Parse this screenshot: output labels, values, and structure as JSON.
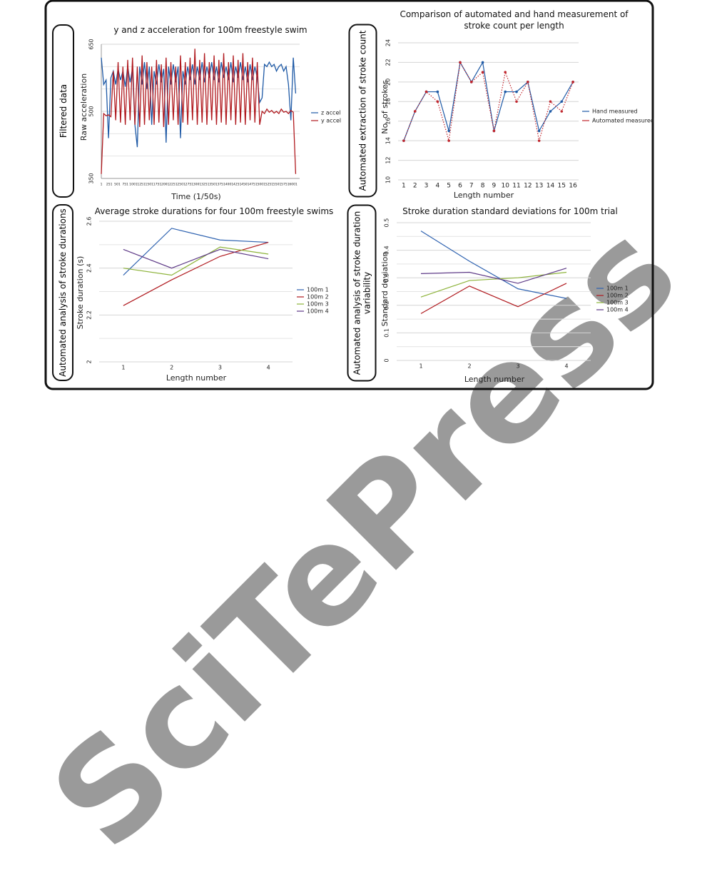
{
  "side_labels": [
    "Filtered data",
    "Automated extraction of stroke count",
    "Automated analysis of stroke durations",
    "Automated analysis of stroke duration variability"
  ],
  "watermark": "SciTePress",
  "chart_data": [
    {
      "type": "line",
      "title": "y and z acceleration for 100m freestyle swim",
      "x_label": "Time (1/50s)",
      "y_label": "Raw acceleration",
      "x": [
        1,
        76,
        151,
        226,
        301,
        376,
        451,
        526,
        601,
        676,
        751,
        826,
        901,
        976,
        1051,
        1126,
        1201,
        1276,
        1351,
        1426,
        1501,
        1576,
        1651,
        1726,
        1801,
        1876,
        1951,
        2026,
        2101,
        2176,
        2251,
        2326,
        2401,
        2476,
        2551,
        2626,
        2701,
        2776,
        2851,
        2926,
        3001,
        3076,
        3151,
        3226,
        3301,
        3376,
        3451,
        3526,
        3601,
        3676,
        3751,
        3826,
        3901,
        3976,
        4051,
        4126,
        4201,
        4276,
        4351,
        4426,
        4501,
        4576,
        4651,
        4726,
        4801,
        4876,
        4951,
        5026,
        5101,
        5176,
        5251,
        5326,
        5401,
        5476,
        5551,
        5626,
        5701,
        5776,
        5851,
        5926,
        6001,
        6076
      ],
      "series": [
        {
          "name": "z accel",
          "color": "#1f5aa6",
          "values": [
            620,
            560,
            570,
            440,
            575,
            590,
            560,
            595,
            570,
            590,
            555,
            600,
            565,
            595,
            470,
            420,
            600,
            560,
            610,
            550,
            600,
            470,
            590,
            560,
            605,
            565,
            595,
            430,
            600,
            560,
            605,
            565,
            600,
            440,
            590,
            560,
            600,
            570,
            605,
            560,
            600,
            570,
            610,
            565,
            600,
            575,
            610,
            570,
            600,
            565,
            610,
            575,
            600,
            570,
            610,
            565,
            600,
            575,
            610,
            570,
            600,
            565,
            605,
            570,
            600,
            575,
            520,
            530,
            605,
            600,
            610,
            600,
            605,
            590,
            600,
            605,
            590,
            600,
            560,
            480,
            620,
            540
          ]
        },
        {
          "name": "y accel",
          "color": "#b0191e",
          "values": [
            360,
            495,
            490,
            492,
            488,
            590,
            480,
            610,
            475,
            600,
            470,
            615,
            480,
            620,
            470,
            600,
            465,
            625,
            470,
            610,
            480,
            600,
            470,
            615,
            475,
            605,
            465,
            620,
            470,
            610,
            480,
            600,
            470,
            625,
            475,
            610,
            470,
            620,
            480,
            640,
            470,
            615,
            475,
            630,
            470,
            610,
            480,
            625,
            470,
            615,
            475,
            630,
            470,
            610,
            480,
            625,
            470,
            615,
            475,
            630,
            470,
            610,
            480,
            620,
            475,
            610,
            470,
            500,
            495,
            505,
            498,
            502,
            496,
            500,
            495,
            505,
            498,
            500,
            495,
            502,
            498,
            360
          ]
        }
      ],
      "xlim": [
        1,
        6200
      ],
      "xticks": [
        1,
        251,
        501,
        751,
        1001,
        1251,
        1501,
        1751,
        2001,
        2251,
        2501,
        2751,
        3001,
        3251,
        3501,
        3751,
        4001,
        4251,
        4501,
        4751,
        5001,
        5251,
        5501,
        5751,
        6001
      ],
      "ylim": [
        350,
        650
      ],
      "yticks": [
        350,
        500,
        650
      ],
      "minor_yticks": [
        400,
        450,
        550,
        600
      ],
      "grid": true
    },
    {
      "type": "line",
      "title": "Comparison of automated and hand measurement of stroke count per length",
      "x_label": "Length number",
      "y_label": "No. of strokes",
      "categories": [
        "1",
        "2",
        "3",
        "4",
        "5",
        "6",
        "7",
        "8",
        "9",
        "10",
        "11",
        "12",
        "13",
        "14",
        "15",
        "16"
      ],
      "series": [
        {
          "name": "Hand measured",
          "color": "#1f5aa6",
          "line_style": "solid",
          "markers": true,
          "values": [
            14,
            17,
            19,
            19,
            15,
            22,
            20,
            22,
            15,
            19,
            19,
            20,
            15,
            17,
            18,
            20
          ]
        },
        {
          "name": "Automated measured",
          "color": "#c0262d",
          "line_style": "dotted",
          "markers": true,
          "values": [
            14,
            17,
            19,
            18,
            14,
            22,
            20,
            21,
            15,
            21,
            18,
            20,
            14,
            18,
            17,
            20
          ]
        }
      ],
      "ylim": [
        10,
        24
      ],
      "yticks": [
        10,
        12,
        14,
        16,
        18,
        20,
        22,
        24
      ],
      "grid": true
    },
    {
      "type": "line",
      "title": "Average stroke durations for four 100m freestyle swims",
      "x_label": "Length number",
      "y_label": "Stroke duration (s)",
      "categories": [
        "1",
        "2",
        "3",
        "4"
      ],
      "series": [
        {
          "name": "100m 1",
          "color": "#2e62b0",
          "values": [
            2.37,
            2.57,
            2.52,
            2.51
          ]
        },
        {
          "name": "100m 2",
          "color": "#b0191e",
          "values": [
            2.24,
            2.35,
            2.45,
            2.51
          ]
        },
        {
          "name": "100m 3",
          "color": "#8db33a",
          "values": [
            2.4,
            2.37,
            2.49,
            2.46
          ]
        },
        {
          "name": "100m 4",
          "color": "#5e3a87",
          "values": [
            2.48,
            2.4,
            2.48,
            2.44
          ]
        }
      ],
      "ylim": [
        2,
        2.6
      ],
      "yticks": [
        2,
        2.2,
        2.4,
        2.6
      ],
      "minor_yticks": [
        2.1,
        2.3,
        2.5
      ],
      "grid": true
    },
    {
      "type": "line",
      "title": "Stroke duration standard deviations for 100m trial",
      "x_label": "Length number",
      "y_label": "Standard deviation",
      "categories": [
        "1",
        "2",
        "3",
        "4"
      ],
      "series": [
        {
          "name": "100m 1",
          "color": "#2e62b0",
          "values": [
            0.47,
            0.36,
            0.26,
            0.225
          ]
        },
        {
          "name": "100m 2",
          "color": "#b0191e",
          "values": [
            0.17,
            0.27,
            0.195,
            0.28
          ]
        },
        {
          "name": "100m 3",
          "color": "#8db33a",
          "values": [
            0.23,
            0.29,
            0.3,
            0.32
          ]
        },
        {
          "name": "100m 4",
          "color": "#5e3a87",
          "values": [
            0.315,
            0.32,
            0.28,
            0.335
          ]
        }
      ],
      "ylim": [
        0,
        0.5
      ],
      "yticks": [
        0,
        0.1,
        0.2,
        0.3,
        0.4,
        0.5
      ],
      "minor_yticks": [
        0.05,
        0.15,
        0.25,
        0.35,
        0.45
      ],
      "grid": true
    }
  ]
}
